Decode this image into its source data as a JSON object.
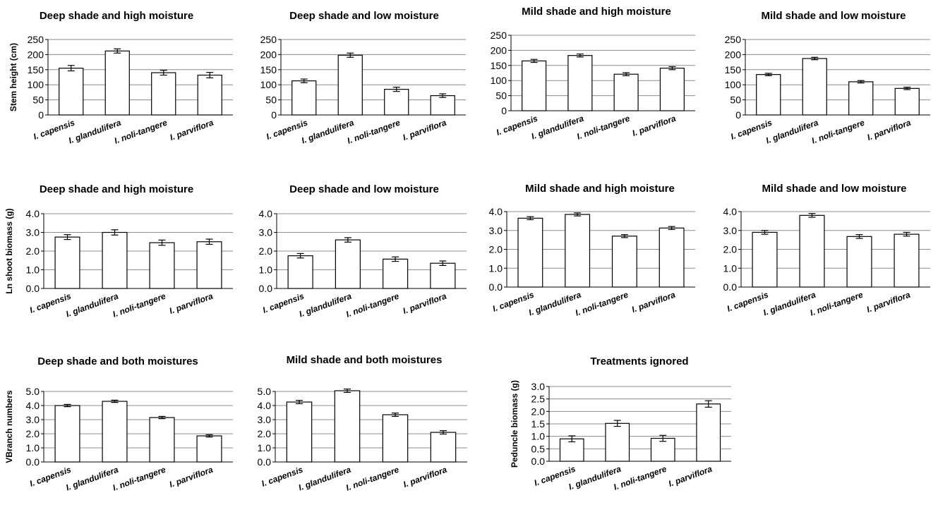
{
  "chart_data": [
    {
      "type": "bar",
      "title": "Deep shade and high moisture",
      "ylabel": "Stem height (cm)",
      "categories": [
        "I. capensis",
        "I. glandulifera",
        "I. noli-tangere",
        "I. parviflora"
      ],
      "values": [
        155,
        212,
        140,
        132
      ],
      "errors": [
        9,
        7,
        8,
        9
      ],
      "ylim": [
        0,
        250
      ],
      "yticks": [
        "0",
        "50",
        "100",
        "150",
        "200",
        "250"
      ],
      "grid": true
    },
    {
      "type": "bar",
      "title": "Deep shade and low moisture",
      "ylabel": "",
      "categories": [
        "I. capensis",
        "I. glandulifera",
        "I. noli-tangere",
        "I. parviflora"
      ],
      "values": [
        113,
        198,
        85,
        64
      ],
      "errors": [
        6,
        7,
        7,
        6
      ],
      "ylim": [
        0,
        250
      ],
      "yticks": [
        "0",
        "50",
        "100",
        "150",
        "200",
        "250"
      ],
      "grid": true
    },
    {
      "type": "bar",
      "title": "Mild shade and high moisture",
      "ylabel": "",
      "categories": [
        "I. capensis",
        "I. glandulifera",
        "I. noli-tangere",
        "I. parviflora"
      ],
      "values": [
        165,
        183,
        121,
        141
      ],
      "errors": [
        5,
        5,
        5,
        5
      ],
      "ylim": [
        0,
        250
      ],
      "yticks": [
        "0",
        "50",
        "100",
        "150",
        "200",
        "250"
      ],
      "grid": true
    },
    {
      "type": "bar",
      "title": "Mild shade and low moisture",
      "ylabel": "",
      "categories": [
        "I. capensis",
        "I. glandulifera",
        "I. noli-tangere",
        "I. parviflora"
      ],
      "values": [
        134,
        187,
        110,
        88
      ],
      "errors": [
        4,
        4,
        4,
        4
      ],
      "ylim": [
        0,
        250
      ],
      "yticks": [
        "0",
        "50",
        "100",
        "150",
        "200",
        "250"
      ],
      "grid": true
    },
    {
      "type": "bar",
      "title": "Deep shade and high moisture",
      "ylabel": "Ln shoot biomass (g)",
      "categories": [
        "I. capensis",
        "I. glandulifera",
        "I. noli-tangere",
        "I. parviflora"
      ],
      "values": [
        2.75,
        3.0,
        2.45,
        2.5
      ],
      "errors": [
        0.13,
        0.14,
        0.14,
        0.14
      ],
      "ylim": [
        0,
        4
      ],
      "yticks": [
        "0.0",
        "1.0",
        "2.0",
        "3.0",
        "4.0"
      ],
      "grid": true
    },
    {
      "type": "bar",
      "title": "Deep shade and low moisture",
      "ylabel": "",
      "categories": [
        "I. capensis",
        "I. glandulifera",
        "I. noli-tangere",
        "I. parviflora"
      ],
      "values": [
        1.75,
        2.6,
        1.57,
        1.35
      ],
      "errors": [
        0.12,
        0.12,
        0.12,
        0.12
      ],
      "ylim": [
        0,
        4
      ],
      "yticks": [
        "0.0",
        "1.0",
        "2.0",
        "3.0",
        "4.0"
      ],
      "grid": true
    },
    {
      "type": "bar",
      "title": "Mild shade and high moisture",
      "ylabel": "",
      "categories": [
        "I. capensis",
        "I. glandulifera",
        "I. noli-tangere",
        "I. parviflora"
      ],
      "values": [
        3.65,
        3.85,
        2.7,
        3.13
      ],
      "errors": [
        0.08,
        0.08,
        0.08,
        0.08
      ],
      "ylim": [
        0,
        4
      ],
      "yticks": [
        "0.0",
        "1.0",
        "2.0",
        "3.0",
        "4.0"
      ],
      "grid": true
    },
    {
      "type": "bar",
      "title": "Mild shade and low moisture",
      "ylabel": "",
      "categories": [
        "I. capensis",
        "I. glandulifera",
        "I. noli-tangere",
        "I. parviflora"
      ],
      "values": [
        2.9,
        3.8,
        2.68,
        2.8
      ],
      "errors": [
        0.1,
        0.1,
        0.1,
        0.1
      ],
      "ylim": [
        0,
        4
      ],
      "yticks": [
        "0.0",
        "1.0",
        "2.0",
        "3.0",
        "4.0"
      ],
      "grid": true
    },
    {
      "type": "bar",
      "title": "Deep shade and both moistures",
      "ylabel": "VBranch numbers",
      "categories": [
        "I. capensis",
        "I. glandulifera",
        "I. noli-tangere",
        "I. parviflora"
      ],
      "values": [
        4.0,
        4.3,
        3.15,
        1.85
      ],
      "errors": [
        0.08,
        0.08,
        0.08,
        0.08
      ],
      "ylim": [
        0,
        5
      ],
      "yticks": [
        "0.0",
        "1.0",
        "2.0",
        "3.0",
        "4.0",
        "5.0"
      ],
      "grid": true
    },
    {
      "type": "bar",
      "title": "Mild shade and both moistures",
      "ylabel": "",
      "categories": [
        "I. capensis",
        "I. glandulifera",
        "I. noli-tangere",
        "I. parviflora"
      ],
      "values": [
        4.25,
        5.05,
        3.35,
        2.1
      ],
      "errors": [
        0.12,
        0.12,
        0.12,
        0.12
      ],
      "ylim": [
        0,
        5
      ],
      "yticks": [
        "0.0",
        "1.0",
        "2.0",
        "3.0",
        "4.0",
        "5.0"
      ],
      "grid": true
    },
    {
      "type": "bar",
      "title": "Treatments ignored",
      "ylabel": "Peduncle biomass (g)",
      "categories": [
        "I. capensis",
        "I. glandulifera",
        "I. noli-tangere",
        "I. parviflora"
      ],
      "values": [
        0.9,
        1.52,
        0.92,
        2.3
      ],
      "errors": [
        0.12,
        0.12,
        0.12,
        0.13
      ],
      "ylim": [
        0,
        3
      ],
      "yticks": [
        "0.0",
        "0.5",
        "1.0",
        "1.5",
        "2.0",
        "2.5",
        "3.0"
      ],
      "grid": true
    }
  ]
}
